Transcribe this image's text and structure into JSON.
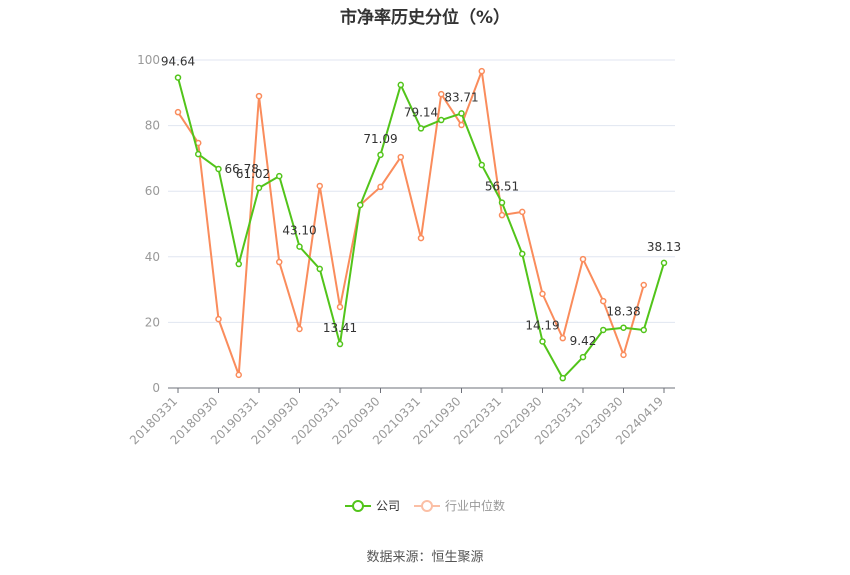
{
  "title": "市净率历史分位（%）",
  "source": "数据来源：恒生聚源",
  "legend": {
    "items": [
      {
        "label": "公司",
        "color": "#52c41a"
      },
      {
        "label": "行业中位数",
        "color": "#fa8c5c"
      }
    ]
  },
  "chart_data": {
    "type": "line",
    "title": "市净率历史分位（%）",
    "xlabel": "",
    "ylabel": "",
    "ylim": [
      0,
      100
    ],
    "yticks": [
      0,
      20,
      40,
      60,
      80,
      100
    ],
    "grid": true,
    "legend_position": "bottom",
    "x": [
      "20180331",
      "20180630",
      "20180930",
      "20181231",
      "20190331",
      "20190630",
      "20190930",
      "20191231",
      "20200331",
      "20200630",
      "20200930",
      "20201231",
      "20210331",
      "20210630",
      "20210930",
      "20211231",
      "20220331",
      "20220630",
      "20220930",
      "20221231",
      "20230331",
      "20230630",
      "20230930",
      "20231231",
      "20240419"
    ],
    "xtick_labels": [
      "20180331",
      "20180930",
      "20190331",
      "20190930",
      "20200331",
      "20200930",
      "20210331",
      "20210930",
      "20220331",
      "20220930",
      "20230331",
      "20230930",
      "20240419"
    ],
    "series": [
      {
        "name": "公司",
        "color": "#52c41a",
        "values": [
          94.64,
          71.3,
          66.78,
          37.8,
          61.02,
          64.6,
          43.1,
          36.3,
          13.41,
          55.8,
          71.09,
          92.4,
          79.14,
          81.7,
          83.71,
          68.0,
          56.51,
          40.9,
          14.19,
          3.0,
          9.42,
          17.7,
          18.38,
          17.7,
          38.13
        ],
        "labeled_points": {
          "0": "94.64",
          "2": "66.78",
          "4": "61.02",
          "6": "43.10",
          "8": "13.41",
          "10": "71.09",
          "12": "79.14",
          "14": "83.71",
          "16": "56.51",
          "18": "14.19",
          "20": "9.42",
          "22": "18.38",
          "24": "38.13"
        }
      },
      {
        "name": "行业中位数",
        "color": "#fa8c5c",
        "values": [
          84.1,
          74.7,
          21.0,
          4.0,
          89.0,
          38.4,
          18.0,
          61.6,
          24.7,
          55.8,
          61.3,
          70.4,
          45.7,
          89.6,
          80.2,
          96.6,
          52.7,
          53.7,
          28.7,
          15.2,
          39.3,
          26.5,
          10.1,
          31.4,
          null
        ]
      }
    ]
  }
}
